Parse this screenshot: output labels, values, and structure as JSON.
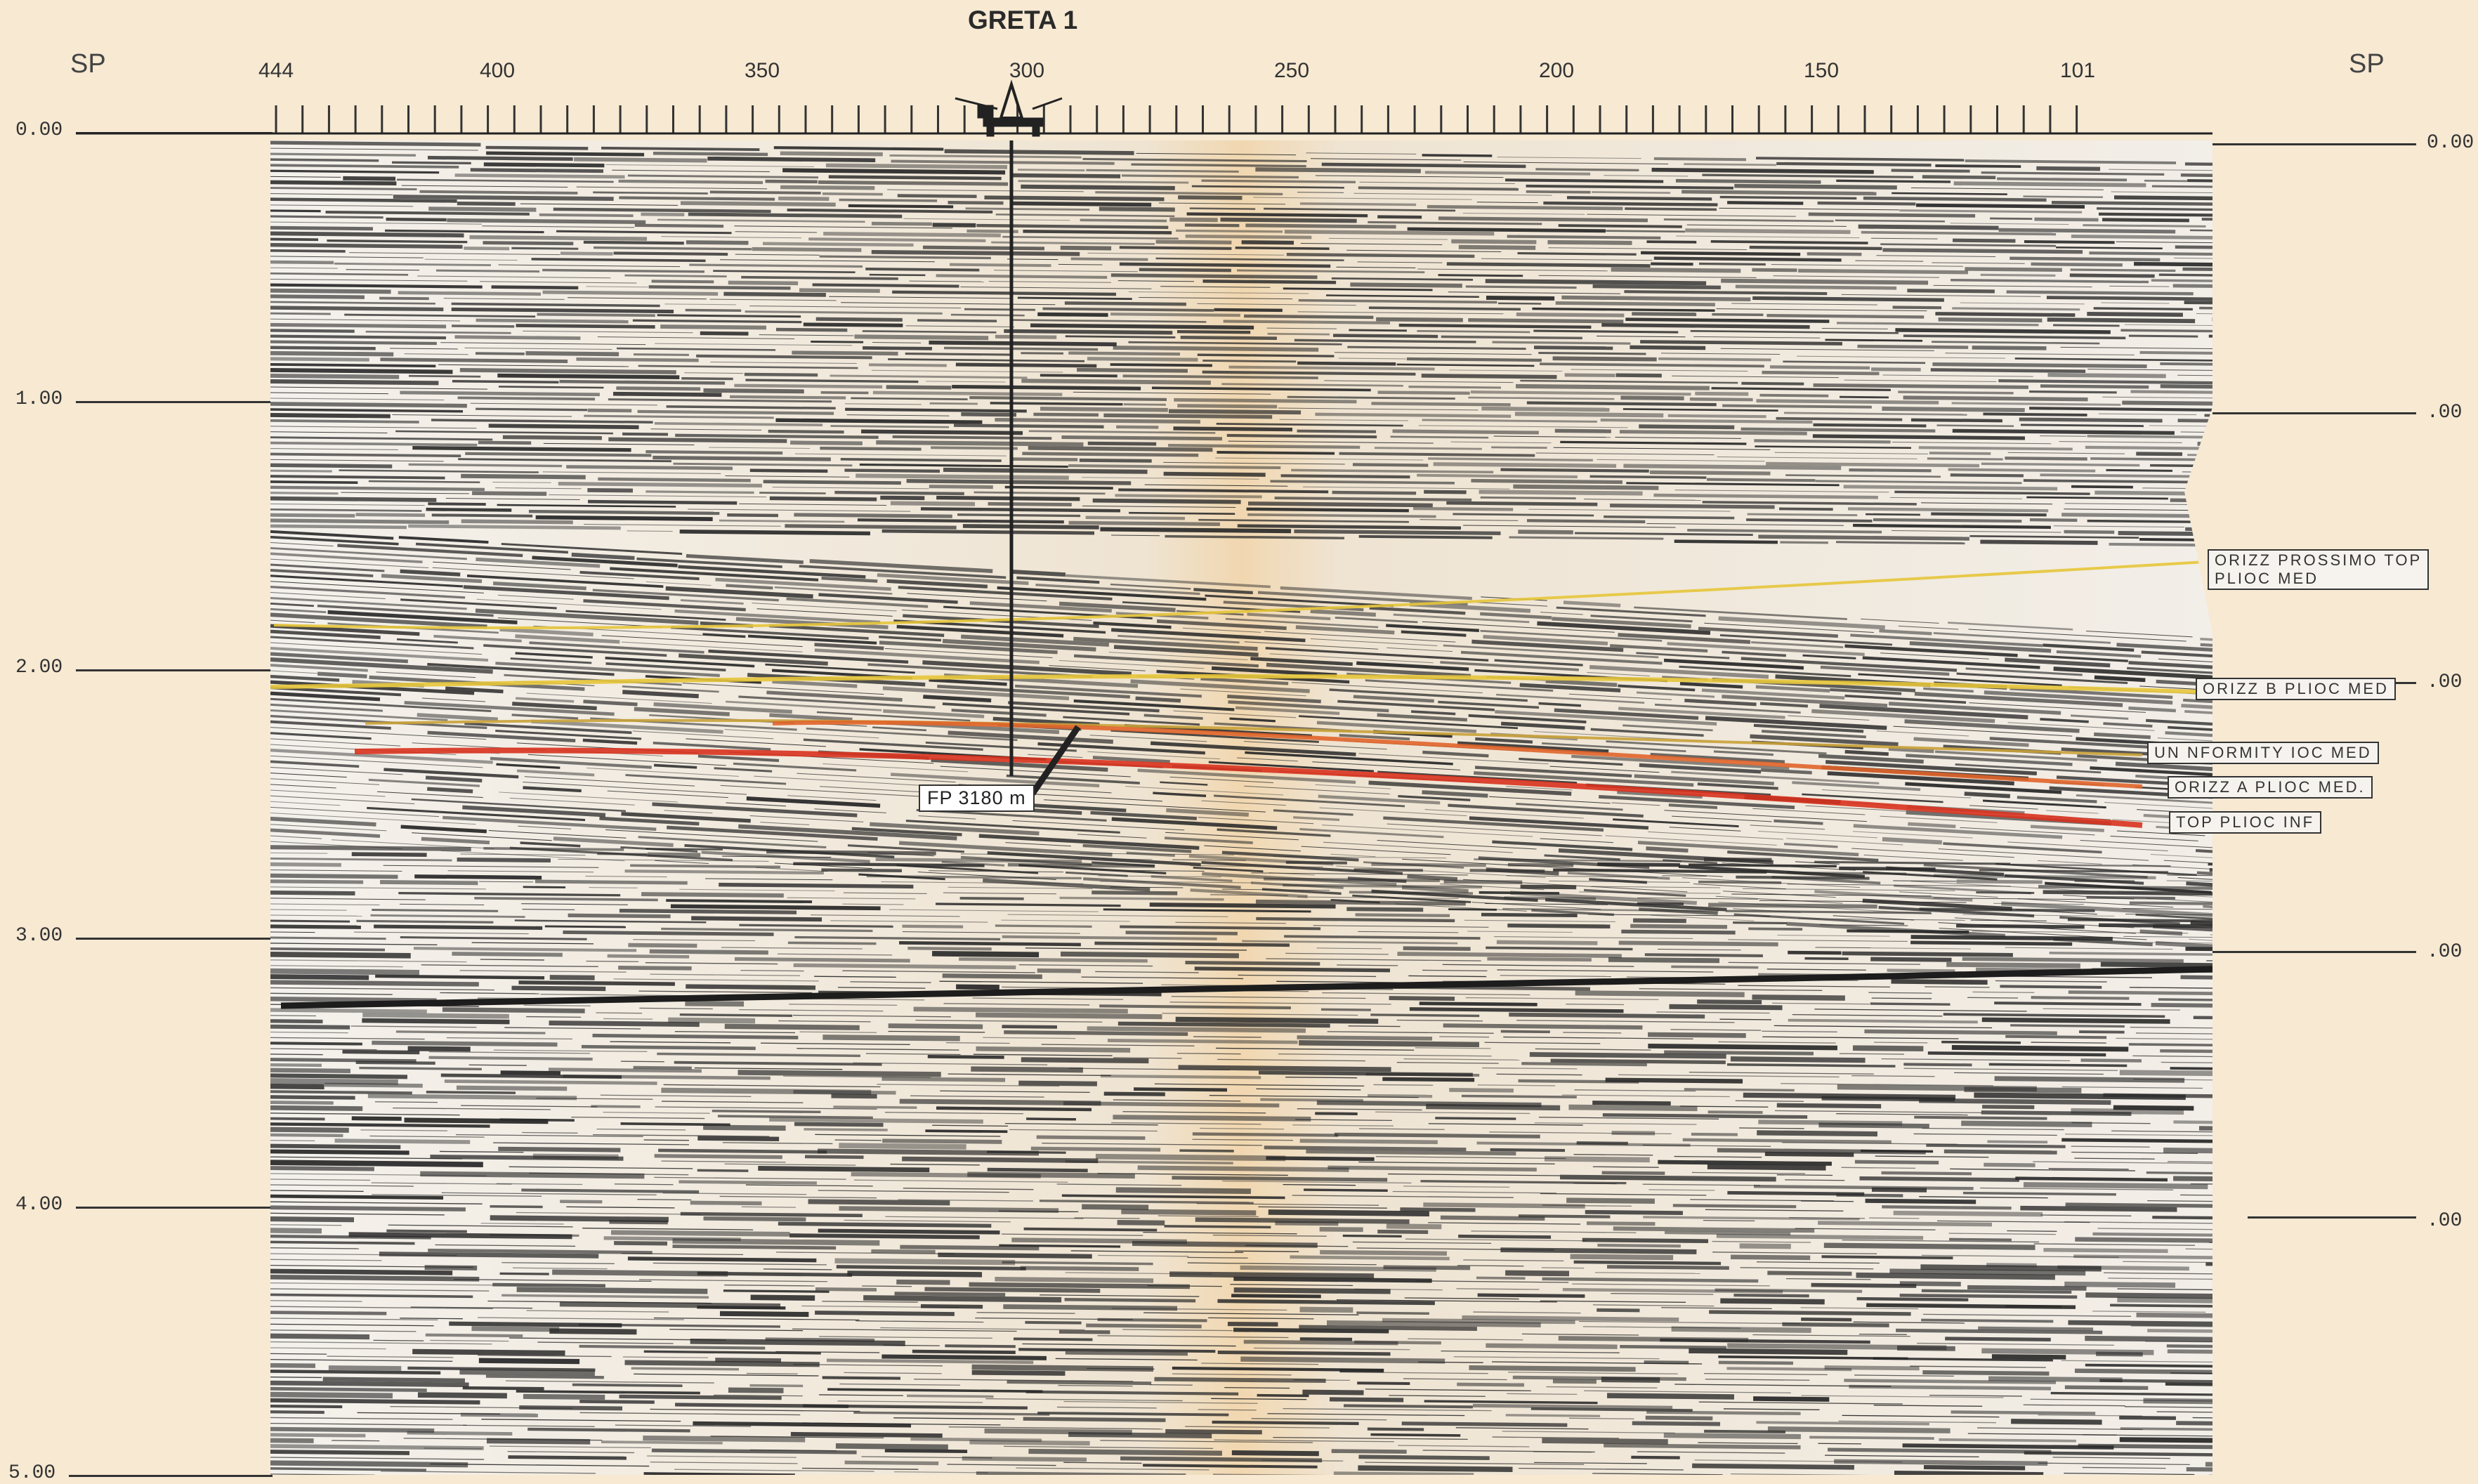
{
  "title": "GRETA 1",
  "sp_label_left": "SP",
  "sp_label_right": "SP",
  "shotpoints": [
    "444",
    "400",
    "350",
    "300",
    "250",
    "200",
    "150",
    "101"
  ],
  "time_labels_left": [
    "0.00",
    "1.00",
    "2.00",
    "3.00",
    "4.00",
    "5.00"
  ],
  "time_labels_right": [
    "0.00",
    ".00",
    ".00",
    ".00",
    ".00",
    ""
  ],
  "well_label": "FP 3180 m",
  "horizons": [
    {
      "label_lines": [
        "ORIZZ  PROSSIMO TOP",
        "PLIOC  MED"
      ],
      "color": "#caa94a"
    },
    {
      "label_lines": [
        "ORIZZ  B PLIOC MED"
      ],
      "color": "#e6c53a"
    },
    {
      "label_lines": [
        "UN  NFORMITY   IOC  MED"
      ],
      "color": "#d8b040"
    },
    {
      "label_lines": [
        "ORIZZ  A PLIOC MED."
      ],
      "color": "#e0642a"
    },
    {
      "label_lines": [
        "TOP PLIOC INF"
      ],
      "color": "#d8321e"
    }
  ],
  "colors": {
    "paper": "#f7e9d2",
    "ink": "#2b2b2b",
    "orange": "#e0642a",
    "red": "#d8321e",
    "yellow": "#e6c53a"
  }
}
